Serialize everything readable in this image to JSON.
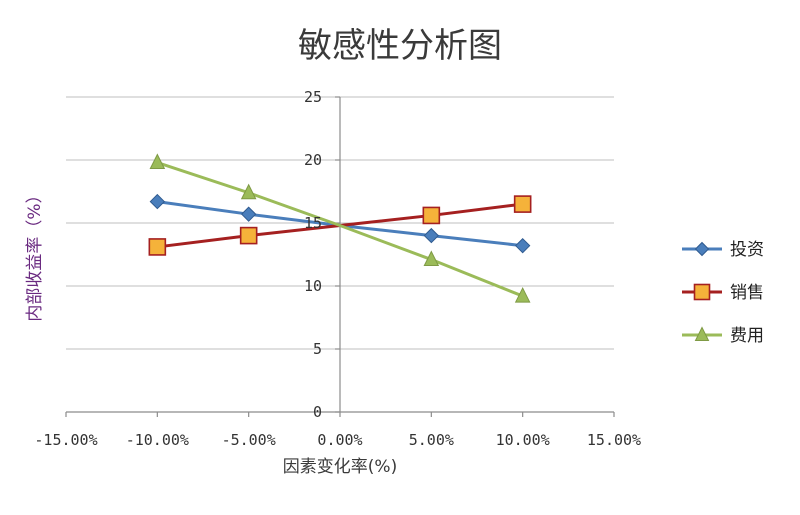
{
  "chart_data": {
    "type": "line",
    "title": "敏感性分析图",
    "xlabel": "因素变化率(%)",
    "ylabel": "内部收益率（%）",
    "xlim": [
      -0.15,
      0.15
    ],
    "ylim": [
      0,
      25
    ],
    "x_ticks": [
      -0.15,
      -0.1,
      -0.05,
      0.0,
      0.05,
      0.1,
      0.15
    ],
    "x_tick_labels": [
      "-15.00%",
      "-10.00%",
      "-5.00%",
      "0.00%",
      "5.00%",
      "10.00%",
      "15.00%"
    ],
    "y_ticks": [
      0,
      5,
      10,
      15,
      20,
      25
    ],
    "y_tick_labels": [
      "0",
      "5",
      "10",
      "15",
      "20",
      "25"
    ],
    "grid": true,
    "legend_position": "right",
    "x": [
      -0.1,
      -0.05,
      0.0,
      0.05,
      0.1
    ],
    "series": [
      {
        "name": "投资",
        "color": "#4a7ebb",
        "marker": "diamond",
        "values": [
          16.7,
          15.7,
          14.8,
          14.0,
          13.2
        ]
      },
      {
        "name": "销售",
        "color": "#a52020",
        "marker": "square",
        "marker_fill": "#f5b23a",
        "values": [
          13.1,
          14.0,
          14.8,
          15.6,
          16.5
        ]
      },
      {
        "name": "费用",
        "color": "#9bbb59",
        "marker": "triangle",
        "values": [
          19.8,
          17.4,
          14.8,
          12.1,
          9.2
        ]
      }
    ]
  }
}
